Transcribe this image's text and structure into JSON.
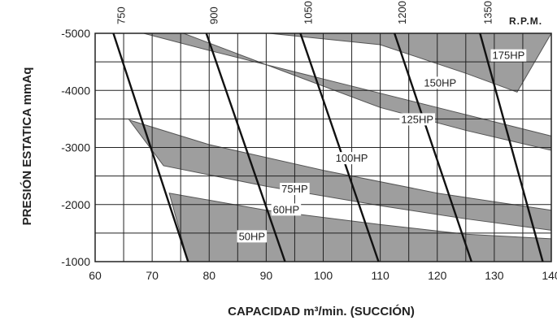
{
  "chart_data": {
    "type": "fan-performance-curve",
    "xlabel": "CAPACIDAD m³/min. (SUCCIÓN)",
    "ylabel": "PRESIÓN ESTATICA mmAq",
    "xlim": [
      60,
      140
    ],
    "ylim": [
      1000,
      5000
    ],
    "x_ticks": [
      "60",
      "70",
      "80",
      "90",
      "100",
      "110",
      "120",
      "130",
      "140"
    ],
    "y_ticks": [
      "-1000",
      "-2000",
      "-3000",
      "-4000",
      "-5000"
    ],
    "grid": true,
    "rpm_title": "R.P.M.",
    "rpm_lines": [
      {
        "label": "750",
        "points": [
          [
            63.2,
            5000
          ],
          [
            76.3,
            1000
          ]
        ]
      },
      {
        "label": "900",
        "points": [
          [
            79.5,
            5000
          ],
          [
            93.3,
            1000
          ]
        ]
      },
      {
        "label": "1050",
        "points": [
          [
            96.0,
            5000
          ],
          [
            109.7,
            1000
          ]
        ]
      },
      {
        "label": "1200",
        "points": [
          [
            112.5,
            5000
          ],
          [
            126.0,
            1000
          ]
        ]
      },
      {
        "label": "1350",
        "points": [
          [
            127.5,
            5000
          ],
          [
            138.5,
            1000
          ]
        ]
      }
    ],
    "hp_bands": [
      {
        "label": "50HP",
        "label_at": [
          87.5,
          1450
        ],
        "upper": [
          [
            73.0,
            2200
          ],
          [
            90,
            1900
          ],
          [
            110,
            1650
          ],
          [
            125,
            1480
          ],
          [
            140,
            1400
          ]
        ],
        "lower": [
          [
            76.3,
            1000
          ],
          [
            140,
            1000
          ]
        ]
      },
      {
        "label": "60HP",
        "label_at": [
          93.5,
          1920
        ],
        "band": false
      },
      {
        "label": "75HP",
        "label_at": [
          95.0,
          2280
        ],
        "upper": [
          [
            66.0,
            3480
          ],
          [
            80,
            3050
          ],
          [
            100,
            2600
          ],
          [
            120,
            2200
          ],
          [
            140,
            1900
          ]
        ],
        "lower": [
          [
            72.0,
            2680
          ],
          [
            90,
            2320
          ],
          [
            110,
            1980
          ],
          [
            125,
            1750
          ],
          [
            140,
            1550
          ]
        ]
      },
      {
        "label": "100HP",
        "label_at": [
          105.0,
          2820
        ],
        "band": false
      },
      {
        "label": "125HP",
        "label_at": [
          116.5,
          3500
        ],
        "upper": [
          [
            68.5,
            5000
          ],
          [
            80,
            4700
          ],
          [
            100,
            4200
          ],
          [
            120,
            3700
          ],
          [
            140,
            3200
          ]
        ],
        "lower": [
          [
            75.5,
            5000
          ],
          [
            90,
            4450
          ],
          [
            110,
            3700
          ],
          [
            125,
            3300
          ],
          [
            140,
            2950
          ]
        ]
      },
      {
        "label": "150HP",
        "label_at": [
          120.5,
          4140
        ],
        "band": false
      },
      {
        "label": "175HP",
        "label_at": [
          132.5,
          4620
        ],
        "upper": [
          [
            103.0,
            5000
          ],
          [
            140,
            5000
          ]
        ],
        "lower": [
          [
            90.5,
            5000
          ],
          [
            110,
            4800
          ],
          [
            125,
            4300
          ],
          [
            134,
            3970
          ]
        ]
      }
    ]
  }
}
